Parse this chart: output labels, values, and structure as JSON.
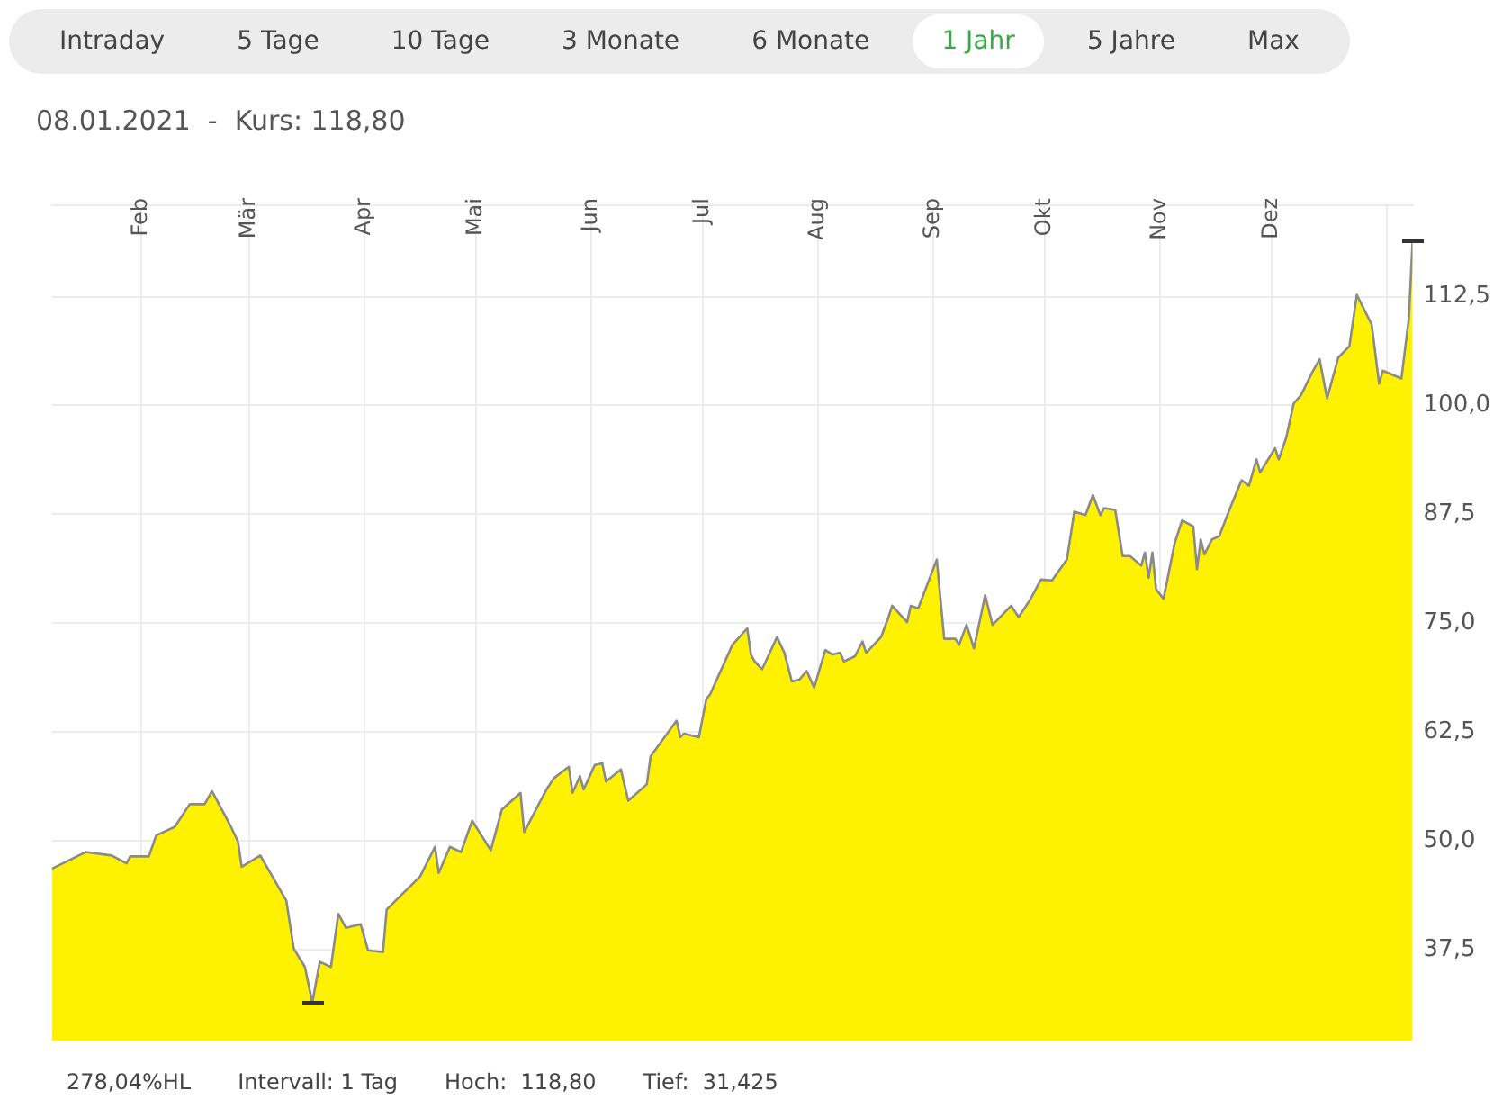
{
  "chart_data": {
    "type": "area",
    "title": "08.01.2021  -  Kurs: 118,80",
    "annotations": [
      "Intraday",
      "5 Tage",
      "10 Tage",
      "3 Monate",
      "6 Monate",
      "1 Jahr",
      "5 Jahre",
      "Max",
      "278,04%HL",
      "Intervall: 1 Tag",
      "Hoch:  118,80",
      "Tief:  31,425"
    ],
    "x": [
      "2020-01-08",
      "2020-01-17",
      "2020-01-24",
      "2020-01-28",
      "2020-01-29",
      "2020-02-03",
      "2020-02-05",
      "2020-02-10",
      "2020-02-14",
      "2020-02-18",
      "2020-02-20",
      "2020-02-25",
      "2020-02-27",
      "2020-02-28",
      "2020-03-04",
      "2020-03-11",
      "2020-03-13",
      "2020-03-16",
      "2020-03-18",
      "2020-03-20",
      "2020-03-23",
      "2020-03-25",
      "2020-03-27",
      "2020-03-31",
      "2020-04-02",
      "2020-04-06",
      "2020-04-07",
      "2020-04-16",
      "2020-04-20",
      "2020-04-21",
      "2020-04-24",
      "2020-04-27",
      "2020-04-30",
      "2020-05-05",
      "2020-05-08",
      "2020-05-13",
      "2020-05-14",
      "2020-05-20",
      "2020-05-22",
      "2020-05-26",
      "2020-05-27",
      "2020-05-29",
      "2020-05-30",
      "2020-06-02",
      "2020-06-04",
      "2020-06-05",
      "2020-06-09",
      "2020-06-11",
      "2020-06-16",
      "2020-06-17",
      "2020-06-24",
      "2020-06-25",
      "2020-06-26",
      "2020-06-30",
      "2020-07-02",
      "2020-07-03",
      "2020-07-09",
      "2020-07-13",
      "2020-07-14",
      "2020-07-15",
      "2020-07-17",
      "2020-07-21",
      "2020-07-23",
      "2020-07-25",
      "2020-07-27",
      "2020-07-29",
      "2020-07-31",
      "2020-08-03",
      "2020-08-05",
      "2020-08-07",
      "2020-08-08",
      "2020-08-11",
      "2020-08-13",
      "2020-08-14",
      "2020-08-18",
      "2020-08-20",
      "2020-08-21",
      "2020-08-25",
      "2020-08-26",
      "2020-08-28",
      "2020-09-02",
      "2020-09-04",
      "2020-09-07",
      "2020-09-08",
      "2020-09-10",
      "2020-09-12",
      "2020-09-15",
      "2020-09-17",
      "2020-09-22",
      "2020-09-24",
      "2020-09-27",
      "2020-09-30",
      "2020-10-03",
      "2020-10-07",
      "2020-10-09",
      "2020-10-12",
      "2020-10-14",
      "2020-10-16",
      "2020-10-17",
      "2020-10-20",
      "2020-10-22",
      "2020-10-24",
      "2020-10-27",
      "2020-10-28",
      "2020-10-29",
      "2020-10-30",
      "2020-10-31",
      "2020-11-02",
      "2020-11-05",
      "2020-11-07",
      "2020-11-10",
      "2020-11-11",
      "2020-11-12",
      "2020-11-13",
      "2020-11-15",
      "2020-11-17",
      "2020-11-20",
      "2020-11-23",
      "2020-11-25",
      "2020-11-27",
      "2020-11-28",
      "2020-12-02",
      "2020-12-03",
      "2020-12-05",
      "2020-12-07",
      "2020-12-09",
      "2020-12-12",
      "2020-12-14",
      "2020-12-16",
      "2020-12-19",
      "2020-12-22",
      "2020-12-24",
      "2020-12-28",
      "2020-12-30",
      "2020-12-31",
      "2021-01-05",
      "2021-01-07",
      "2021-01-08"
    ],
    "values": [
      46.8,
      48.7,
      48.3,
      47.4,
      48.2,
      48.2,
      50.6,
      51.6,
      54.2,
      54.2,
      55.7,
      51.7,
      49.9,
      47.0,
      48.3,
      43.1,
      37.6,
      35.5,
      31.4,
      36.1,
      35.5,
      41.6,
      40.0,
      40.4,
      37.4,
      37.2,
      42.1,
      45.9,
      49.3,
      46.3,
      49.3,
      48.7,
      52.3,
      48.9,
      53.6,
      55.5,
      51.0,
      55.9,
      57.2,
      58.5,
      55.5,
      57.4,
      55.9,
      58.7,
      58.9,
      56.8,
      58.2,
      54.6,
      56.5,
      59.7,
      63.8,
      61.9,
      62.3,
      61.9,
      66.3,
      66.8,
      72.5,
      74.4,
      71.4,
      70.6,
      69.7,
      73.4,
      71.6,
      68.3,
      68.5,
      69.5,
      67.6,
      71.9,
      71.4,
      71.6,
      70.6,
      71.2,
      72.9,
      71.6,
      73.4,
      75.7,
      77.0,
      75.1,
      77.0,
      76.7,
      82.3,
      73.2,
      73.2,
      72.5,
      74.8,
      72.1,
      78.2,
      74.8,
      77.0,
      75.7,
      77.6,
      80.0,
      79.9,
      82.3,
      87.8,
      87.4,
      89.7,
      87.4,
      88.2,
      88.0,
      82.7,
      82.7,
      81.6,
      83.1,
      80.2,
      83.1,
      78.9,
      77.8,
      84.2,
      86.8,
      86.1,
      81.2,
      84.6,
      82.9,
      84.6,
      85.0,
      88.3,
      91.4,
      90.8,
      93.8,
      92.3,
      95.1,
      93.8,
      96.3,
      100.2,
      101.2,
      103.8,
      105.3,
      100.8,
      105.5,
      106.8,
      112.7,
      109.3,
      102.5,
      104.0,
      103.1,
      110.0,
      118.8
    ],
    "color": "#fff200",
    "xlim": [
      "2020-01-08",
      "2021-01-08"
    ],
    "xticks": [
      {
        "value": "2020-02-01",
        "label": "Feb"
      },
      {
        "value": "2020-03-01",
        "label": "Mär"
      },
      {
        "value": "2020-04-01",
        "label": "Apr"
      },
      {
        "value": "2020-05-01",
        "label": "Mai"
      },
      {
        "value": "2020-06-01",
        "label": "Jun"
      },
      {
        "value": "2020-07-01",
        "label": "Jul"
      },
      {
        "value": "2020-08-01",
        "label": "Aug"
      },
      {
        "value": "2020-09-01",
        "label": "Sep"
      },
      {
        "value": "2020-10-01",
        "label": "Okt"
      },
      {
        "value": "2020-11-01",
        "label": "Nov"
      },
      {
        "value": "2020-12-01",
        "label": "Dez"
      },
      {
        "value": "2021-01-01",
        "label": null
      }
    ],
    "ylim": [
      27,
      123
    ],
    "yticks": [
      {
        "value": 37.5,
        "label": "37,5"
      },
      {
        "value": 50,
        "label": "50,0"
      },
      {
        "value": 62.5,
        "label": "62,5"
      },
      {
        "value": 75,
        "label": "75,0"
      },
      {
        "value": 87.5,
        "label": "87,5"
      },
      {
        "value": 100,
        "label": "100,0"
      },
      {
        "value": 112.5,
        "label": "112,5"
      }
    ],
    "grid": true,
    "legend": false,
    "marker": "none",
    "line_style": "solid"
  }
}
